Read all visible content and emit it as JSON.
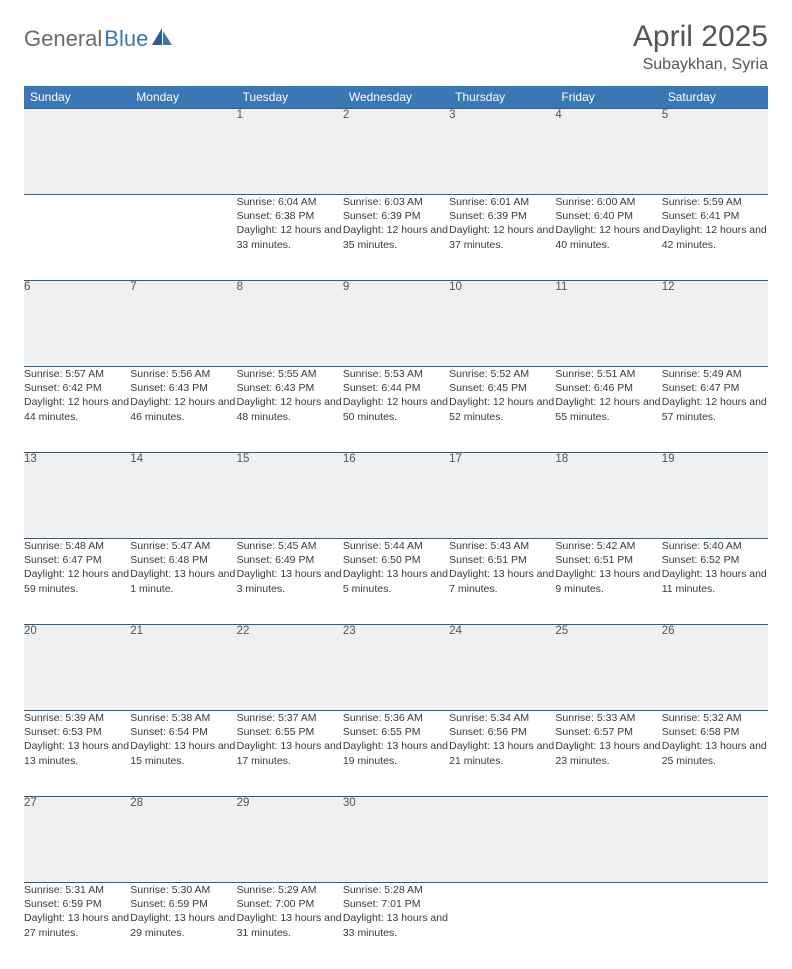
{
  "logo": {
    "part1": "General",
    "part2": "Blue"
  },
  "title": "April 2025",
  "location": "Subaykhan, Syria",
  "colors": {
    "header_bg": "#3a78b5",
    "header_text": "#ffffff",
    "daynum_bg": "#eef0f1",
    "border": "#2d5d8f",
    "text": "#3a3a3a",
    "title_color": "#555555"
  },
  "weekdays": [
    "Sunday",
    "Monday",
    "Tuesday",
    "Wednesday",
    "Thursday",
    "Friday",
    "Saturday"
  ],
  "weeks": [
    [
      null,
      null,
      {
        "d": "1",
        "sr": "6:04 AM",
        "ss": "6:38 PM",
        "dl": "12 hours and 33 minutes."
      },
      {
        "d": "2",
        "sr": "6:03 AM",
        "ss": "6:39 PM",
        "dl": "12 hours and 35 minutes."
      },
      {
        "d": "3",
        "sr": "6:01 AM",
        "ss": "6:39 PM",
        "dl": "12 hours and 37 minutes."
      },
      {
        "d": "4",
        "sr": "6:00 AM",
        "ss": "6:40 PM",
        "dl": "12 hours and 40 minutes."
      },
      {
        "d": "5",
        "sr": "5:59 AM",
        "ss": "6:41 PM",
        "dl": "12 hours and 42 minutes."
      }
    ],
    [
      {
        "d": "6",
        "sr": "5:57 AM",
        "ss": "6:42 PM",
        "dl": "12 hours and 44 minutes."
      },
      {
        "d": "7",
        "sr": "5:56 AM",
        "ss": "6:43 PM",
        "dl": "12 hours and 46 minutes."
      },
      {
        "d": "8",
        "sr": "5:55 AM",
        "ss": "6:43 PM",
        "dl": "12 hours and 48 minutes."
      },
      {
        "d": "9",
        "sr": "5:53 AM",
        "ss": "6:44 PM",
        "dl": "12 hours and 50 minutes."
      },
      {
        "d": "10",
        "sr": "5:52 AM",
        "ss": "6:45 PM",
        "dl": "12 hours and 52 minutes."
      },
      {
        "d": "11",
        "sr": "5:51 AM",
        "ss": "6:46 PM",
        "dl": "12 hours and 55 minutes."
      },
      {
        "d": "12",
        "sr": "5:49 AM",
        "ss": "6:47 PM",
        "dl": "12 hours and 57 minutes."
      }
    ],
    [
      {
        "d": "13",
        "sr": "5:48 AM",
        "ss": "6:47 PM",
        "dl": "12 hours and 59 minutes."
      },
      {
        "d": "14",
        "sr": "5:47 AM",
        "ss": "6:48 PM",
        "dl": "13 hours and 1 minute."
      },
      {
        "d": "15",
        "sr": "5:45 AM",
        "ss": "6:49 PM",
        "dl": "13 hours and 3 minutes."
      },
      {
        "d": "16",
        "sr": "5:44 AM",
        "ss": "6:50 PM",
        "dl": "13 hours and 5 minutes."
      },
      {
        "d": "17",
        "sr": "5:43 AM",
        "ss": "6:51 PM",
        "dl": "13 hours and 7 minutes."
      },
      {
        "d": "18",
        "sr": "5:42 AM",
        "ss": "6:51 PM",
        "dl": "13 hours and 9 minutes."
      },
      {
        "d": "19",
        "sr": "5:40 AM",
        "ss": "6:52 PM",
        "dl": "13 hours and 11 minutes."
      }
    ],
    [
      {
        "d": "20",
        "sr": "5:39 AM",
        "ss": "6:53 PM",
        "dl": "13 hours and 13 minutes."
      },
      {
        "d": "21",
        "sr": "5:38 AM",
        "ss": "6:54 PM",
        "dl": "13 hours and 15 minutes."
      },
      {
        "d": "22",
        "sr": "5:37 AM",
        "ss": "6:55 PM",
        "dl": "13 hours and 17 minutes."
      },
      {
        "d": "23",
        "sr": "5:36 AM",
        "ss": "6:55 PM",
        "dl": "13 hours and 19 minutes."
      },
      {
        "d": "24",
        "sr": "5:34 AM",
        "ss": "6:56 PM",
        "dl": "13 hours and 21 minutes."
      },
      {
        "d": "25",
        "sr": "5:33 AM",
        "ss": "6:57 PM",
        "dl": "13 hours and 23 minutes."
      },
      {
        "d": "26",
        "sr": "5:32 AM",
        "ss": "6:58 PM",
        "dl": "13 hours and 25 minutes."
      }
    ],
    [
      {
        "d": "27",
        "sr": "5:31 AM",
        "ss": "6:59 PM",
        "dl": "13 hours and 27 minutes."
      },
      {
        "d": "28",
        "sr": "5:30 AM",
        "ss": "6:59 PM",
        "dl": "13 hours and 29 minutes."
      },
      {
        "d": "29",
        "sr": "5:29 AM",
        "ss": "7:00 PM",
        "dl": "13 hours and 31 minutes."
      },
      {
        "d": "30",
        "sr": "5:28 AM",
        "ss": "7:01 PM",
        "dl": "13 hours and 33 minutes."
      },
      null,
      null,
      null
    ]
  ],
  "labels": {
    "sunrise": "Sunrise: ",
    "sunset": "Sunset: ",
    "daylight": "Daylight: "
  }
}
